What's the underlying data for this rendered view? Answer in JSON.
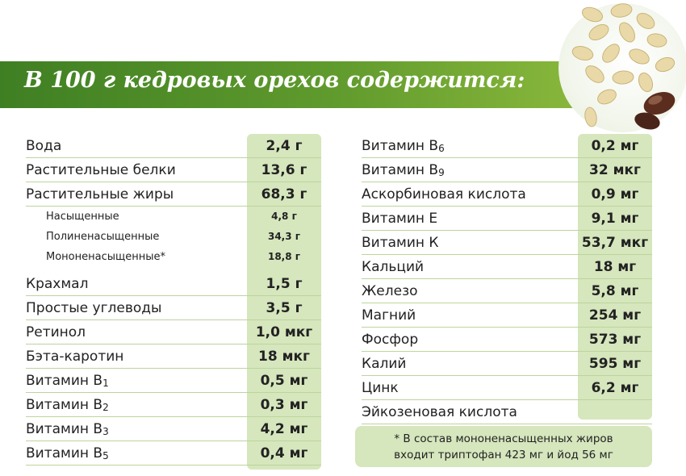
{
  "header": {
    "title": "В 100 г кедровых орехов содержится:"
  },
  "left_table": [
    {
      "label": "Вода",
      "value": "2,4 г"
    },
    {
      "label": "Растительные белки",
      "value": "13,6 г"
    },
    {
      "label": "Растительные жиры",
      "value": "68,3 г"
    },
    {
      "label": "Насыщенные",
      "value": "4,8 г",
      "sub": true
    },
    {
      "label": "Полиненасыщенные",
      "value": "34,3 г",
      "sub": true
    },
    {
      "label": "Мононенасыщенные*",
      "value": "18,8 г",
      "sub": true
    },
    {
      "label": "Крахмал",
      "value": "1,5 г"
    },
    {
      "label": "Простые углеводы",
      "value": "3,5 г"
    },
    {
      "label": "Ретинол",
      "value": "1,0 мкг"
    },
    {
      "label": "Бэта-каротин",
      "value": "18 мкг"
    },
    {
      "label": "Витамин В",
      "subscript": "1",
      "value": "0,5 мг"
    },
    {
      "label": "Витамин В",
      "subscript": "2",
      "value": "0,3 мг"
    },
    {
      "label": "Витамин В",
      "subscript": "3",
      "value": "4,2 мг"
    },
    {
      "label": "Витамин В",
      "subscript": "5",
      "value": "0,4 мг"
    }
  ],
  "right_table": [
    {
      "label": "Витамин В",
      "subscript": "6",
      "value": "0,2 мг"
    },
    {
      "label": "Витамин В",
      "subscript": "9",
      "value": "32 мкг"
    },
    {
      "label": "Аскорбиновая кислота",
      "value": "0,9 мг"
    },
    {
      "label": "Витамин Е",
      "value": "9,1 мг"
    },
    {
      "label": "Витамин К",
      "value": "53,7 мкг"
    },
    {
      "label": "Кальций",
      "value": "18 мг"
    },
    {
      "label": "Железо",
      "value": "5,8 мг"
    },
    {
      "label": "Магний",
      "value": "254 мг"
    },
    {
      "label": "Фосфор",
      "value": "573 мг"
    },
    {
      "label": "Калий",
      "value": "595 мг"
    },
    {
      "label": "Цинк",
      "value": "6,2 мг"
    },
    {
      "label": "Эйкозеновая кислота",
      "value": ""
    }
  ],
  "footnote": {
    "line1": "* В состав мононенасыщенных жиров",
    "line2": "входит триптофан 423 мг и йод 56 мг"
  },
  "colors": {
    "banner": "#4f8d28",
    "value_column": "#d6e6bd",
    "row_line": "#bcd59c"
  }
}
